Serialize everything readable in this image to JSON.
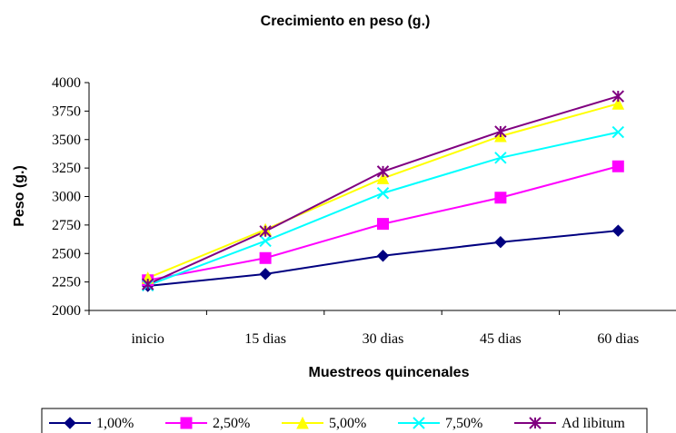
{
  "chart_data": {
    "type": "line",
    "title": "Crecimiento en peso (g.)",
    "xlabel": "Muestreos quincenales",
    "ylabel": "Peso (g.)",
    "categories": [
      "inicio",
      "15 dias",
      "30 dias",
      "45 dias",
      "60 dias"
    ],
    "ylim": [
      2000,
      4000
    ],
    "yticks": [
      2000,
      2250,
      2500,
      2750,
      3000,
      3250,
      3500,
      3750,
      4000
    ],
    "grid": false,
    "legend_position": "bottom",
    "series": [
      {
        "name": "1,00%",
        "color": "#000080",
        "marker": "diamond",
        "values": [
          2215,
          2320,
          2480,
          2600,
          2700
        ]
      },
      {
        "name": "2,50%",
        "color": "#FF00FF",
        "marker": "square",
        "values": [
          2265,
          2460,
          2760,
          2990,
          3265
        ]
      },
      {
        "name": "5,00%",
        "color": "#FFFF00",
        "marker": "triangle",
        "values": [
          2285,
          2710,
          3160,
          3530,
          3815
        ]
      },
      {
        "name": "7,50%",
        "color": "#00FFFF",
        "marker": "x",
        "values": [
          2220,
          2610,
          3030,
          3340,
          3565
        ]
      },
      {
        "name": "Ad libitum",
        "color": "#800080",
        "marker": "star",
        "values": [
          2230,
          2695,
          3220,
          3570,
          3880
        ]
      }
    ]
  }
}
